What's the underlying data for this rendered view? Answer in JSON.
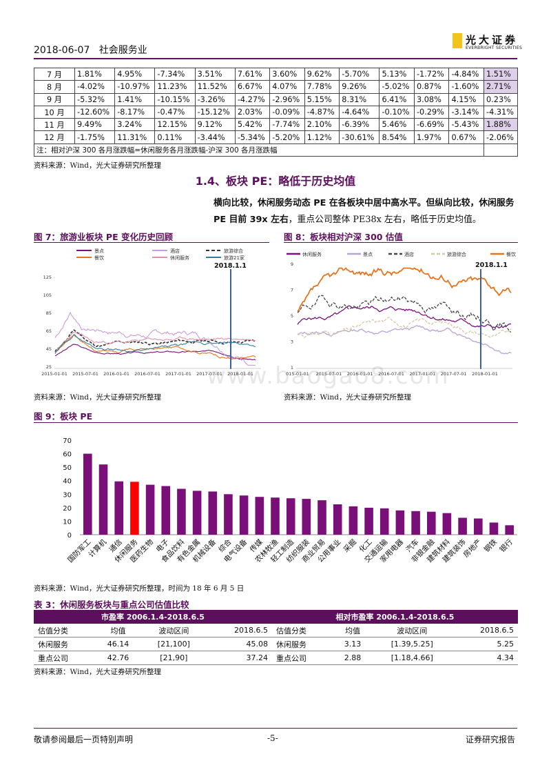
{
  "header": {
    "date": "2018-06-07",
    "industry": "社会服务业",
    "logo_cn": "光大证券",
    "logo_en": "EVERBRIGHT SECURITIES"
  },
  "monthly_table": {
    "rows": [
      {
        "month": "7 月",
        "values": [
          "1.81%",
          "4.95%",
          "-7.34%",
          "3.51%",
          "7.61%",
          "3.60%",
          "9.62%",
          "-5.70%",
          "5.13%",
          "-1.72%",
          "-4.84%"
        ],
        "last": "1.51%",
        "highlight": true
      },
      {
        "month": "8 月",
        "values": [
          "-4.02%",
          "-10.97%",
          "11.23%",
          "11.52%",
          "6.67%",
          "4.07%",
          "7.78%",
          "9.26%",
          "-5.02%",
          "0.87%",
          "-1.60%"
        ],
        "last": "2.71%",
        "highlight": true
      },
      {
        "month": "9 月",
        "values": [
          "-5.32%",
          "1.41%",
          "-10.15%",
          "-3.26%",
          "-4.27%",
          "-2.96%",
          "5.15%",
          "8.31%",
          "6.41%",
          "3.08%",
          "4.15%"
        ],
        "last": "0.23%",
        "highlight": false
      },
      {
        "month": "10 月",
        "values": [
          "-12.60%",
          "-8.17%",
          "-0.47%",
          "-15.12%",
          "2.03%",
          "-0.09%",
          "-4.87%",
          "-4.64%",
          "-0.10%",
          "-0.29%",
          "-3.14%"
        ],
        "last": "-4.31%",
        "highlight": false
      },
      {
        "month": "11 月",
        "values": [
          "9.49%",
          "3.24%",
          "12.15%",
          "9.12%",
          "5.42%",
          "-7.74%",
          "2.10%",
          "-6.39%",
          "5.46%",
          "-6.69%",
          "-5.43%"
        ],
        "last": "1.88%",
        "highlight": true
      },
      {
        "month": "12 月",
        "values": [
          "-1.75%",
          "11.31%",
          "0.11%",
          "-3.44%",
          "-5.34%",
          "-5.20%",
          "1.12%",
          "-30.61%",
          "8.54%",
          "1.97%",
          "0.67%"
        ],
        "last": "-2.06%",
        "highlight": false
      }
    ],
    "note": "注：相对沪深 300 各月涨跌幅=休闲服务各月涨跌幅-沪深 300 各月涨跌幅"
  },
  "source_text": "资料来源：Wind，光大证券研究所整理",
  "section": {
    "title": "1.4、板块 PE：略低于历史均值"
  },
  "paragraph": {
    "bold": "横向比较，休闲服务动态 PE 在各板块中居中高水平。但纵向比较，休闲服务 PE 目前 39x 左右",
    "normal": "，重点公司整体 PE38x 左右，略低于历史均值。"
  },
  "fig7": {
    "title": "图 7：旅游业板块 PE 变化历史回顾",
    "legend": [
      "景点",
      "酒店",
      "旅游综合",
      "餐饮",
      "休闲服务",
      "旅游21家"
    ],
    "colors": [
      "#7a0f7a",
      "#c89be0",
      "#333333",
      "#e8731a",
      "#e68fa8",
      "#2e7fa3"
    ],
    "marker_label": "2018.1.1",
    "yticks": [
      "125",
      "105",
      "85",
      "65",
      "45",
      "25"
    ],
    "xticks": [
      "2015-01-01",
      "2015-07-01",
      "2016-01-01",
      "2016-07-01",
      "2017-01-01",
      "2017-07-01",
      "2018-01-01"
    ]
  },
  "fig8": {
    "title": "图 8：板块相对沪深 300 估值",
    "legend": [
      "休闲服务",
      "景点",
      "酒店",
      "旅游综合",
      "餐饮"
    ],
    "colors": [
      "#7a0f7a",
      "#b9a3d6",
      "#444444",
      "#d8c9a6",
      "#e8731a"
    ],
    "marker_label": "2018.1.1",
    "yticks": [
      "9",
      "7",
      "5",
      "3",
      "1"
    ],
    "xticks": [
      "015-01-01",
      "2015-07-01",
      "2016-01-01",
      "2016-07-01",
      "2017-01-01",
      "2017-07-01",
      "2018-01-01"
    ]
  },
  "watermark": "www.baogao8.com",
  "fig9": {
    "title": "图 9：板块 PE"
  },
  "fig9_source": "资料来源：Wind，光大证券研究所整理，时间为 18 年 6 月 5 日",
  "chart_data": {
    "type": "bar",
    "categories": [
      "国防军工",
      "计算机",
      "通信",
      "休闲服务",
      "医药生物",
      "电子",
      "食品饮料",
      "有色金属",
      "机械设备",
      "综合",
      "电气设备",
      "传媒",
      "农林牧渔",
      "轻工制造",
      "纺织服装",
      "商业贸易",
      "公用事业",
      "采掘",
      "化工",
      "交通运输",
      "家用电器",
      "汽车",
      "非银金融",
      "建筑材料",
      "建筑装饰",
      "房地产",
      "钢铁",
      "银行"
    ],
    "values": [
      60,
      52,
      39.5,
      39.2,
      37,
      36,
      34,
      32.5,
      32,
      30,
      29,
      28,
      27.5,
      27,
      26.5,
      25.5,
      22.5,
      21,
      20,
      19.5,
      18,
      17.5,
      17,
      16,
      12.5,
      12,
      9,
      7
    ],
    "highlight_index": 3,
    "colors": {
      "bar": "#7a0f7a",
      "highlight": "#ff0000"
    },
    "ylim": [
      0,
      70
    ],
    "yticks": [
      "70",
      "60",
      "50",
      "40",
      "30",
      "20",
      "10",
      "0"
    ]
  },
  "table3": {
    "title": "表 3：休闲服务板块与重点公司估值比较",
    "group_left": "市盈率 2006.1.4-2018.6.5",
    "group_right": "相对市盈率 2006.1.4-2018.6.5",
    "headers": [
      "估值分类",
      "均值",
      "波动区间",
      "2018.6.5",
      "估值分类",
      "均值",
      "波动区间",
      "2018.6.5"
    ],
    "rows": [
      [
        "休闲服务",
        "46.14",
        "[21,100]",
        "45.08",
        "休闲服务",
        "3.13",
        "[1.39,5.25]",
        "5.25"
      ],
      [
        "重点公司",
        "42.76",
        "[21,90]",
        "37.24",
        "重点公司",
        "2.88",
        "[1.18,4.66]",
        "4.34"
      ]
    ]
  },
  "footer": {
    "left": "敬请参阅最后一页特别声明",
    "center": "-5-",
    "right": "证券研究报告"
  }
}
